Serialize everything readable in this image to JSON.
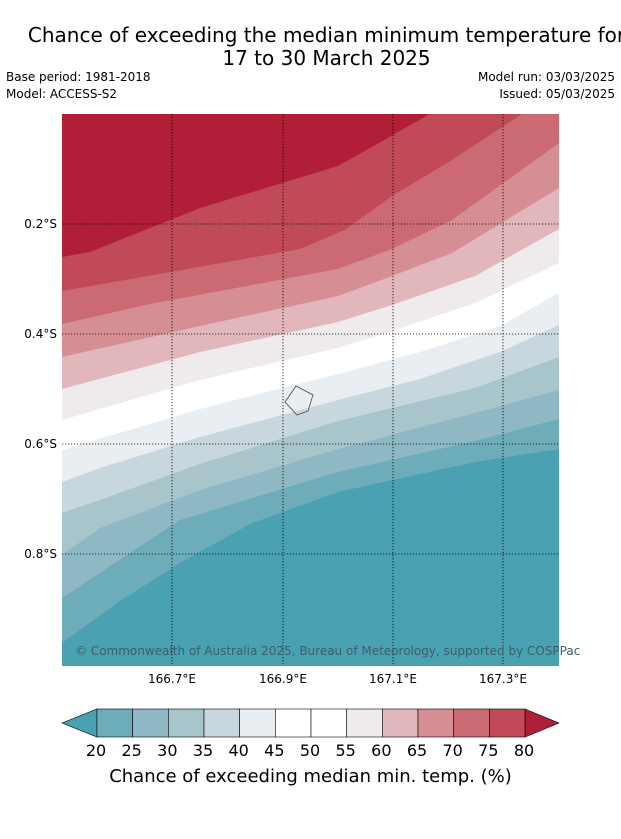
{
  "title": {
    "line1": "Chance of exceeding the median minimum temperature for",
    "line2": "17 to 30 March 2025"
  },
  "meta": {
    "base_period": "Base period: 1981-2018",
    "model": "Model: ACCESS-S2",
    "model_run": "Model run: 03/03/2025",
    "issued": "Issued: 05/03/2025"
  },
  "map": {
    "lat_labels": [
      "0.2°S",
      "0.4°S",
      "0.6°S",
      "0.8°S"
    ],
    "lon_labels": [
      "166.7°E",
      "166.9°E",
      "167.1°E",
      "167.3°E"
    ],
    "copyright": "© Commonwealth of Australia 2025, Bureau of Meteorology, supported by COSPPac",
    "band_colors": [
      "#b11e38",
      "#c14a57",
      "#cc6a74",
      "#d68e95",
      "#e1b7bc",
      "#efebed",
      "#ffffff",
      "#e9eef2",
      "#c8d7dd",
      "#a8c5cb",
      "#8fb8c5",
      "#6cadb9",
      "#4aa1b2"
    ]
  },
  "colorbar": {
    "ticks": [
      "20",
      "25",
      "30",
      "35",
      "40",
      "45",
      "50",
      "55",
      "60",
      "65",
      "70",
      "75",
      "80"
    ],
    "colors": [
      "#6cadb9",
      "#8fb8c5",
      "#a8c5cb",
      "#c8d7dd",
      "#e9eef2",
      "#ffffff",
      "#ffffff",
      "#efebed",
      "#e1b7bc",
      "#d68e95",
      "#cc6a74",
      "#c14a57"
    ],
    "low_extend_color": "#4aa1b2",
    "high_extend_color": "#b11e38",
    "label": "Chance of exceeding median min. temp. (%)"
  }
}
